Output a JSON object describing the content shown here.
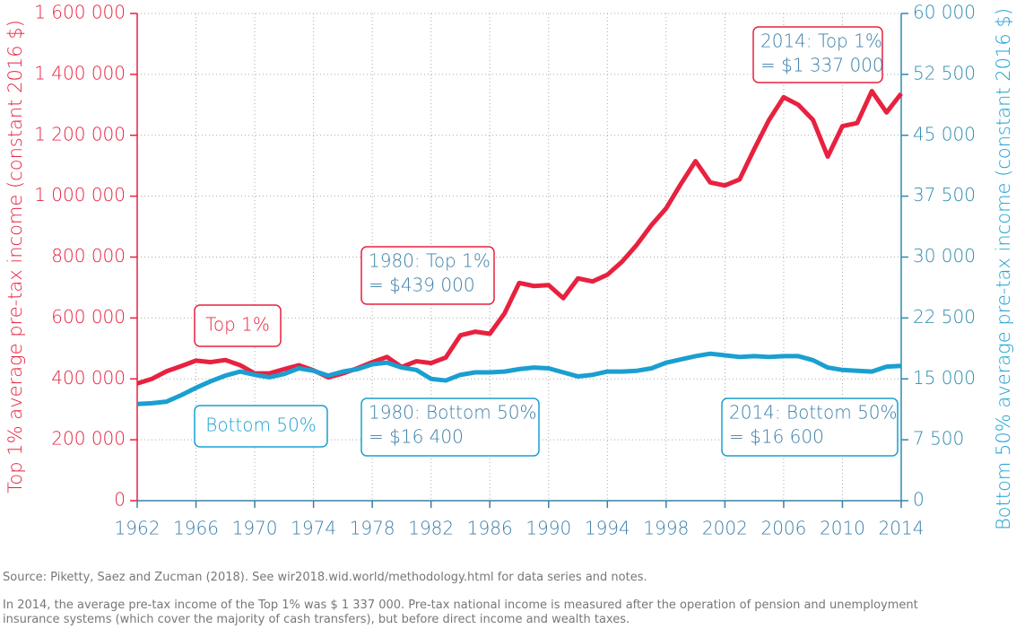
{
  "chart_data": {
    "type": "line",
    "y_label": "Top 1% average pre-tax income (constant 2016 $)",
    "y2_label": "Bottom 50% average pre-tax income (constant 2016 $)",
    "x": [
      1962,
      1963,
      1964,
      1965,
      1966,
      1967,
      1968,
      1969,
      1970,
      1971,
      1972,
      1973,
      1974,
      1975,
      1976,
      1977,
      1978,
      1979,
      1980,
      1981,
      1982,
      1983,
      1984,
      1985,
      1986,
      1987,
      1988,
      1989,
      1990,
      1991,
      1992,
      1993,
      1994,
      1995,
      1996,
      1997,
      1998,
      1999,
      2000,
      2001,
      2002,
      2003,
      2004,
      2005,
      2006,
      2007,
      2008,
      2009,
      2010,
      2011,
      2012,
      2013,
      2014
    ],
    "xlim": [
      1962,
      2014
    ],
    "xticks": [
      1962,
      1966,
      1970,
      1974,
      1978,
      1982,
      1986,
      1990,
      1994,
      1998,
      2002,
      2006,
      2010,
      2014
    ],
    "ylim": [
      0,
      1600000
    ],
    "yticks": [
      0,
      {
        "value": 200000,
        "label": "200 000"
      },
      {
        "value": 400000,
        "label": "400 000"
      },
      {
        "value": 600000,
        "label": "600 000"
      },
      {
        "value": 800000,
        "label": "800 000"
      },
      {
        "value": 1000000,
        "label": "1 000 000"
      },
      {
        "value": 1200000,
        "label": "1 200 000"
      },
      {
        "value": 1400000,
        "label": "1 400 000"
      },
      {
        "value": 1600000,
        "label": "1 600 000"
      }
    ],
    "y2lim": [
      0,
      60000
    ],
    "y2ticks": [
      0,
      {
        "value": 7500,
        "label": "7 500"
      },
      {
        "value": 15000,
        "label": "15 000"
      },
      {
        "value": 22500,
        "label": "22 500"
      },
      {
        "value": 30000,
        "label": "30 000"
      },
      {
        "value": 37500,
        "label": "37 500"
      },
      {
        "value": 45000,
        "label": "45 000"
      },
      {
        "value": 52500,
        "label": "52 500"
      },
      {
        "value": 60000,
        "label": "60 000"
      }
    ],
    "grid": true,
    "series": [
      {
        "name": "Top 1%",
        "color": "#e8213f",
        "values": [
          385000,
          400000,
          425000,
          442000,
          460000,
          455000,
          462000,
          445000,
          418000,
          418000,
          432000,
          445000,
          428000,
          405000,
          418000,
          435000,
          455000,
          472000,
          439000,
          458000,
          452000,
          470000,
          543000,
          555000,
          548000,
          615000,
          715000,
          705000,
          708000,
          665000,
          730000,
          720000,
          742000,
          785000,
          840000,
          905000,
          960000,
          1040000,
          1115000,
          1045000,
          1035000,
          1055000,
          1155000,
          1250000,
          1325000,
          1300000,
          1250000,
          1130000,
          1230000,
          1240000,
          1345000,
          1275000,
          1337000
        ]
      },
      {
        "name": "Bottom 50%",
        "color": "#1a9fd0",
        "axis": "y2",
        "values": [
          11900,
          12000,
          12200,
          13000,
          13900,
          14700,
          15400,
          15900,
          15500,
          15200,
          15600,
          16300,
          16000,
          15400,
          15900,
          16200,
          16800,
          17000,
          16400,
          16100,
          15000,
          14800,
          15500,
          15800,
          15800,
          15900,
          16200,
          16400,
          16300,
          15800,
          15300,
          15500,
          15900,
          15900,
          16000,
          16300,
          17000,
          17400,
          17800,
          18100,
          17900,
          17700,
          17800,
          17700,
          17800,
          17800,
          17300,
          16400,
          16100,
          16000,
          15900,
          16500,
          16600
        ]
      }
    ],
    "annotations": [
      {
        "lines": [
          "2014: Top 1%",
          "= $1 337 000"
        ]
      },
      {
        "lines": [
          "1980: Top 1%",
          "= $439 000"
        ]
      },
      {
        "lines": [
          "1980: Bottom 50%",
          "= $16 400"
        ]
      },
      {
        "lines": [
          "2014: Bottom 50%",
          "= $16 600"
        ]
      }
    ],
    "source": "Source: Piketty, Saez and Zucman (2018). See wir2018.wid.world/methodology.html for data series and notes.",
    "note": "In 2014, the average pre-tax income of the Top 1% was $ 1 337 000. Pre-tax national income is measured after the operation of pension and unemployment insurance systems (which cover the majority of cash transfers), but before direct income and wealth taxes."
  }
}
